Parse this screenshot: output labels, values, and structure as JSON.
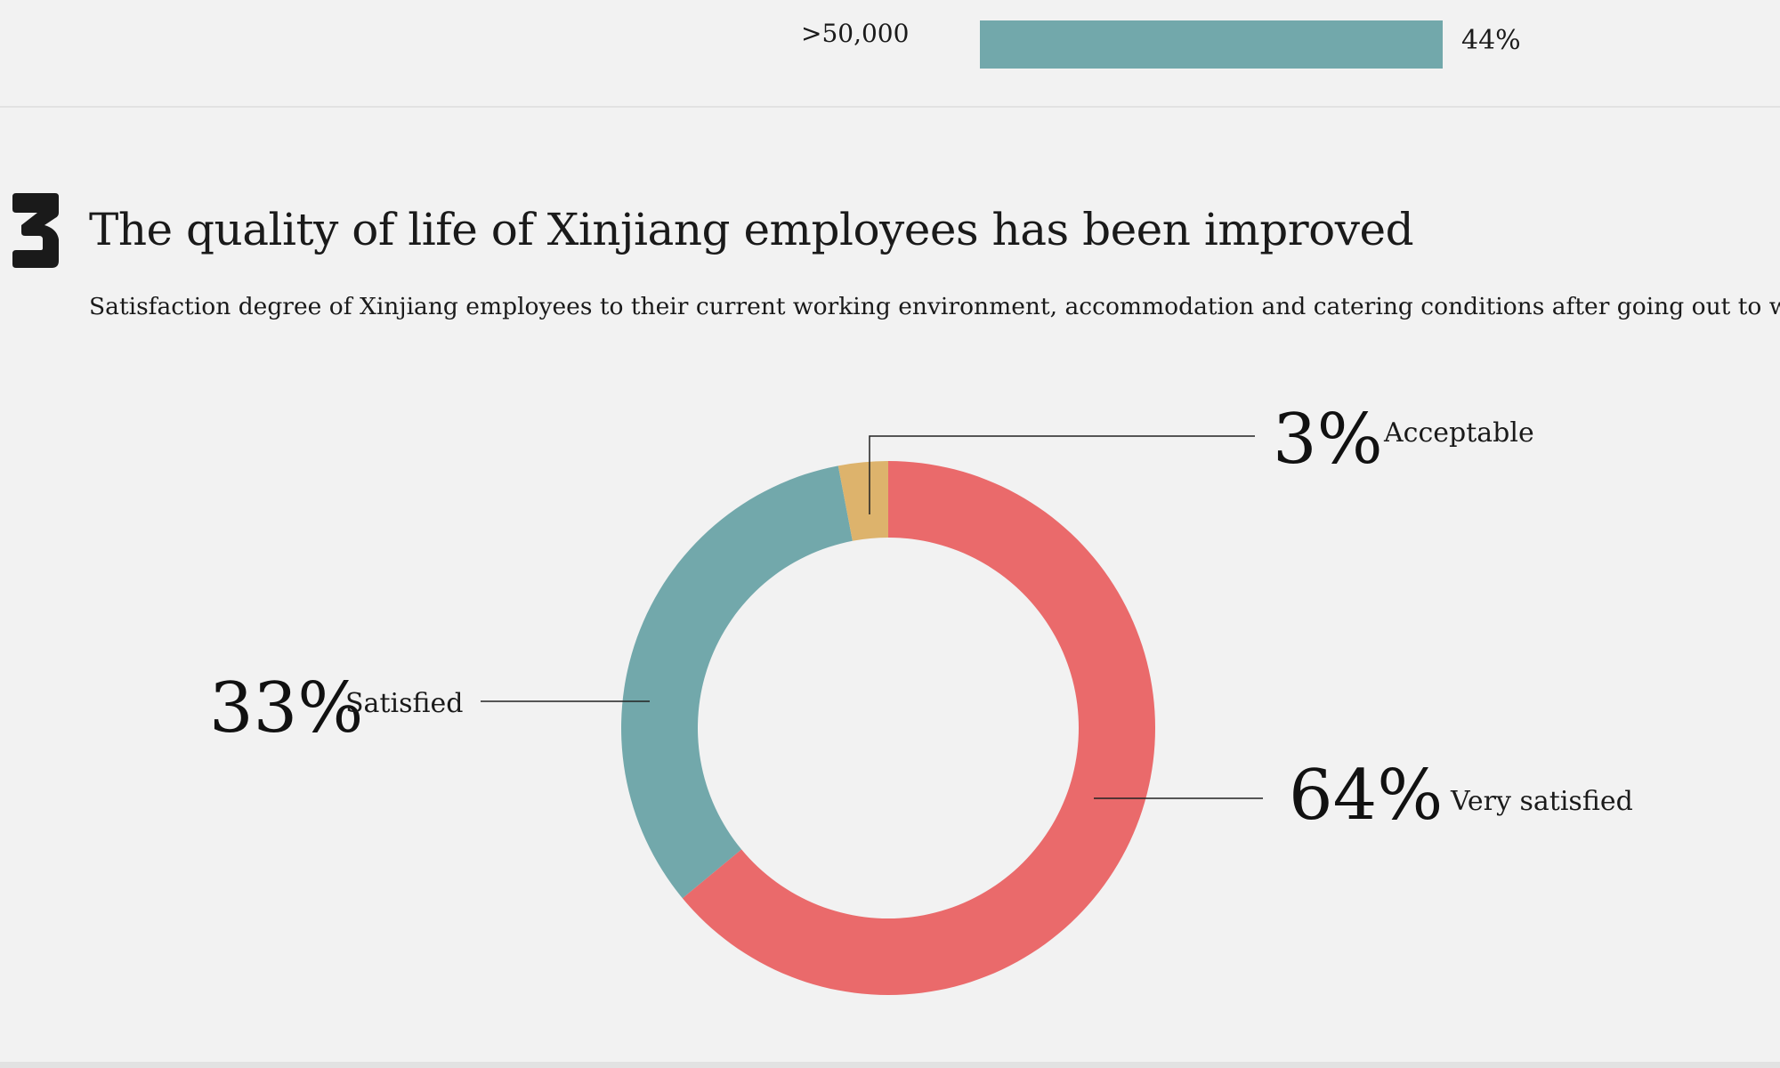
{
  "top_bar": {
    "category": ">50,000",
    "value_label": "44%",
    "value": 44,
    "color": "#72a8ab"
  },
  "section": {
    "number_glyph": "3",
    "title": "The quality of life of Xinjiang employees has been improved",
    "subtitle": "Satisfaction degree of Xinjiang employees to their current working environment, accommodation and catering conditions after going out to work"
  },
  "chart_data": {
    "type": "pie",
    "donut": true,
    "slices": [
      {
        "label": "Very satisfied",
        "value": 64,
        "value_label": "64%",
        "color": "#ea6a6b"
      },
      {
        "label": "Satisfied",
        "value": 33,
        "value_label": "33%",
        "color": "#72a8ab"
      },
      {
        "label": "Acceptable",
        "value": 3,
        "value_label": "3%",
        "color": "#ddb36c"
      }
    ],
    "start": "12 o'clock",
    "direction": "clockwise",
    "labels": "outside with leader lines"
  }
}
